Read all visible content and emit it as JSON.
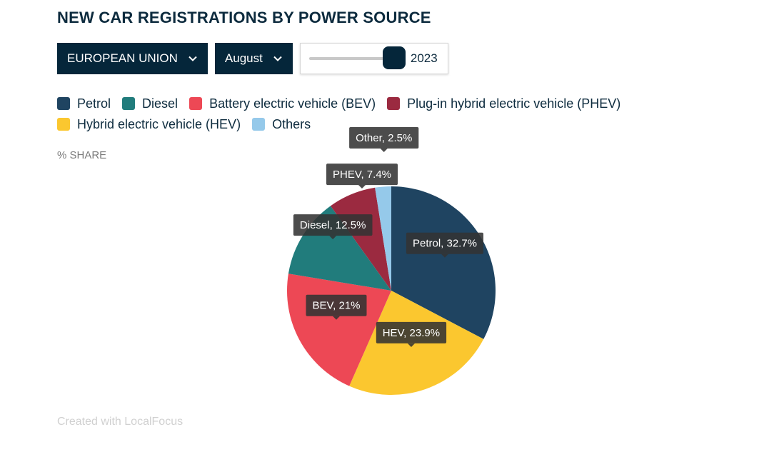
{
  "header": {
    "title": "NEW CAR REGISTRATIONS BY POWER SOURCE"
  },
  "controls": {
    "region": "EUROPEAN UNION",
    "month": "August",
    "year": "2023",
    "year_slider_fraction": 0.9
  },
  "axis": {
    "unit_label": "% SHARE"
  },
  "footer": {
    "credit": "Created with LocalFocus"
  },
  "chart_data": {
    "type": "pie",
    "title": "NEW CAR REGISTRATIONS BY POWER SOURCE",
    "unit": "% SHARE",
    "legend": [
      {
        "label": "Petrol",
        "color": "#1f4461"
      },
      {
        "label": "Diesel",
        "color": "#217c7c"
      },
      {
        "label": "Battery electric vehicle (BEV)",
        "color": "#ed4855"
      },
      {
        "label": "Plug-in hybrid electric vehicle (PHEV)",
        "color": "#9b2a40"
      },
      {
        "label": "Hybrid electric vehicle (HEV)",
        "color": "#fbc72f"
      },
      {
        "label": "Others",
        "color": "#95c9ea"
      }
    ],
    "slices": [
      {
        "label": "Petrol",
        "value": 32.7,
        "data_label": "Petrol, 32.7%",
        "color": "#1f4461"
      },
      {
        "label": "HEV",
        "value": 23.9,
        "data_label": "HEV, 23.9%",
        "color": "#fbc72f"
      },
      {
        "label": "BEV",
        "value": 21,
        "data_label": "BEV, 21%",
        "color": "#ed4855"
      },
      {
        "label": "Diesel",
        "value": 12.5,
        "data_label": "Diesel, 12.5%",
        "color": "#217c7c"
      },
      {
        "label": "PHEV",
        "value": 7.4,
        "data_label": "PHEV, 7.4%",
        "color": "#9b2a40"
      },
      {
        "label": "Other",
        "value": 2.5,
        "data_label": "Other, 2.5%",
        "color": "#95c9ea"
      }
    ]
  }
}
